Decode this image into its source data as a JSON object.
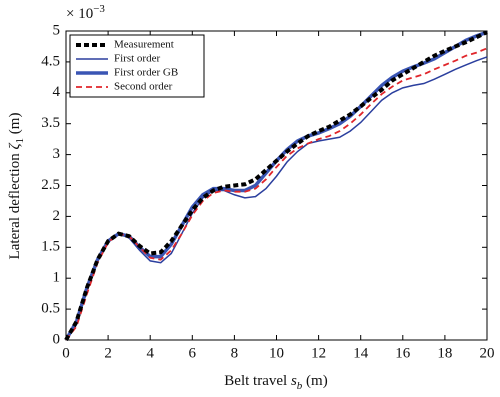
{
  "chart_data": {
    "type": "line",
    "xlabel": "Belt travel",
    "xlabel_symbol": "s",
    "xlabel_subscript": "b",
    "xlabel_unit": "(m)",
    "ylabel": "Lateral deflection",
    "ylabel_symbol": "ζ",
    "ylabel_subscript": "1",
    "ylabel_unit": "(m)",
    "y_multiplier": "× 10",
    "y_exponent": "−3",
    "xlim": [
      0,
      20
    ],
    "ylim": [
      0,
      5
    ],
    "xticks": [
      0,
      2,
      4,
      6,
      8,
      10,
      12,
      14,
      16,
      18,
      20
    ],
    "yticks": [
      0,
      0.5,
      1,
      1.5,
      2,
      2.5,
      3,
      3.5,
      4,
      4.5,
      5
    ],
    "legend": "upper left",
    "x": [
      0,
      0.5,
      1,
      1.5,
      2,
      2.5,
      3,
      3.5,
      4,
      4.5,
      5,
      5.5,
      6,
      6.5,
      7,
      7.5,
      8,
      8.5,
      9,
      9.5,
      10,
      10.5,
      11,
      11.5,
      12,
      12.5,
      13,
      13.5,
      14,
      14.5,
      15,
      15.5,
      16,
      16.5,
      17,
      17.5,
      18,
      18.5,
      19,
      19.5,
      20
    ],
    "series": [
      {
        "name": "Measurement",
        "color": "#000000",
        "style": "dashed",
        "width": 4,
        "values": [
          0,
          0.3,
          0.85,
          1.3,
          1.6,
          1.72,
          1.68,
          1.52,
          1.4,
          1.42,
          1.6,
          1.85,
          2.1,
          2.3,
          2.42,
          2.48,
          2.5,
          2.52,
          2.6,
          2.75,
          2.9,
          3.05,
          3.18,
          3.3,
          3.38,
          3.45,
          3.55,
          3.65,
          3.78,
          3.92,
          4.05,
          4.2,
          4.3,
          4.4,
          4.5,
          4.6,
          4.68,
          4.75,
          4.82,
          4.9,
          4.98
        ]
      },
      {
        "name": "First order",
        "color": "#2b3f9e",
        "style": "solid",
        "width": 1.5,
        "values": [
          0,
          0.25,
          0.8,
          1.28,
          1.6,
          1.72,
          1.65,
          1.45,
          1.28,
          1.25,
          1.4,
          1.72,
          2.05,
          2.3,
          2.42,
          2.42,
          2.35,
          2.3,
          2.32,
          2.45,
          2.65,
          2.88,
          3.05,
          3.18,
          3.22,
          3.25,
          3.28,
          3.38,
          3.52,
          3.7,
          3.88,
          4.0,
          4.08,
          4.12,
          4.15,
          4.22,
          4.3,
          4.38,
          4.45,
          4.52,
          4.58
        ]
      },
      {
        "name": "First order GB",
        "color": "#3a55b4",
        "style": "solid",
        "width": 3.5,
        "values": [
          0,
          0.3,
          0.85,
          1.3,
          1.6,
          1.72,
          1.68,
          1.5,
          1.35,
          1.35,
          1.55,
          1.85,
          2.15,
          2.35,
          2.45,
          2.45,
          2.42,
          2.42,
          2.5,
          2.7,
          2.9,
          3.08,
          3.22,
          3.3,
          3.35,
          3.42,
          3.5,
          3.62,
          3.78,
          3.95,
          4.12,
          4.25,
          4.35,
          4.42,
          4.48,
          4.55,
          4.65,
          4.75,
          4.85,
          4.92,
          4.98
        ]
      },
      {
        "name": "Second order",
        "color": "#e0262b",
        "style": "dashed",
        "width": 1.8,
        "values": [
          0,
          0.22,
          0.75,
          1.25,
          1.58,
          1.72,
          1.68,
          1.5,
          1.33,
          1.3,
          1.45,
          1.72,
          2.02,
          2.25,
          2.38,
          2.42,
          2.4,
          2.4,
          2.45,
          2.6,
          2.8,
          2.98,
          3.1,
          3.18,
          3.25,
          3.3,
          3.38,
          3.5,
          3.65,
          3.82,
          3.98,
          4.1,
          4.2,
          4.25,
          4.3,
          4.38,
          4.45,
          4.52,
          4.6,
          4.65,
          4.72
        ]
      }
    ]
  }
}
